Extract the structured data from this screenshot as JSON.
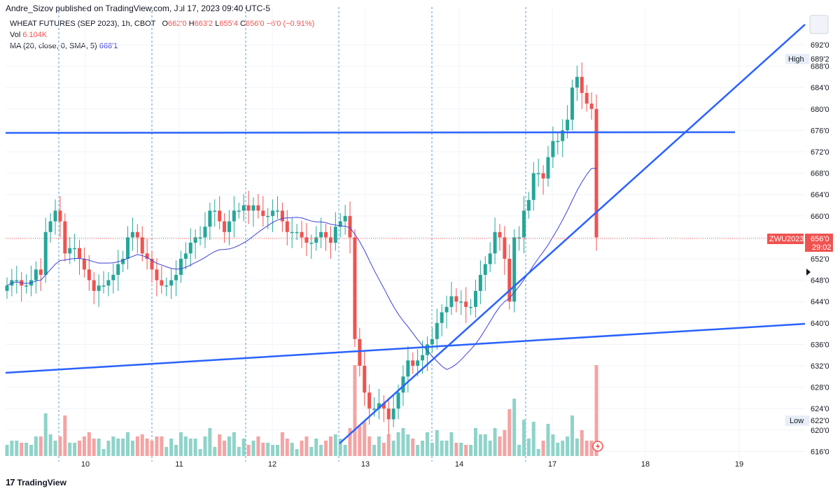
{
  "header": {
    "published_line": "Andre_Sizov published on TradingView.com, Jul 17, 2023 09:40 UTC-5"
  },
  "legend": {
    "symbol_line": "WHEAT FUTURES (SEP 2023), 1h, CBOT",
    "open_label": "O",
    "open_value": "662'0",
    "high_label": "H",
    "high_value": "663'2",
    "low_label": "L",
    "low_value": "655'4",
    "close_label": "C",
    "close_value": "656'0",
    "change_value": "−6'0 (−0.91%)",
    "vol_label": "Vol",
    "vol_value": "6.104K",
    "ma_label": "MA (20, close, 0, SMA, 5)",
    "ma_value": "668'1"
  },
  "colors": {
    "up": "#26a69a",
    "down": "#ef5350",
    "up_vol": "#8fd3c9",
    "down_vol": "#f5a3a3",
    "trendline": "#2962ff",
    "ma": "#3f3fd8",
    "session_line": "#5b9bd5"
  },
  "price_tags": {
    "high_label": "High",
    "high_value": "689'2",
    "low_label": "Low",
    "low_value": "622'0",
    "symbol_label": "ZWU2023",
    "last_value": "656'0",
    "countdown": "29:02"
  },
  "branding": {
    "text": "TradingView",
    "logo": "17"
  },
  "chart_data": {
    "type": "candlestick",
    "y_ticks": [
      "692'0",
      "688'0",
      "684'0",
      "680'0",
      "676'0",
      "672'0",
      "668'0",
      "664'0",
      "660'0",
      "656'0",
      "652'0",
      "648'0",
      "644'0",
      "640'0",
      "636'0",
      "632'0",
      "628'0",
      "624'0",
      "620'0",
      "616'0"
    ],
    "x_ticks": [
      "10",
      "11",
      "12",
      "13",
      "14",
      "17",
      "18",
      "19"
    ],
    "ylim": [
      614,
      694
    ],
    "candles_close": [
      647,
      648,
      648,
      647,
      647,
      648,
      650,
      649,
      657,
      659,
      661,
      659,
      653,
      654,
      654,
      652,
      650,
      648,
      646,
      647,
      647,
      648,
      649,
      651,
      652,
      656,
      657,
      656,
      653,
      652,
      650,
      648,
      647,
      647,
      648,
      649,
      652,
      653,
      655,
      656,
      656,
      658,
      661,
      661,
      659,
      657,
      659,
      661,
      661,
      662,
      661,
      662,
      661,
      660,
      660,
      661,
      661,
      659,
      657,
      657,
      657,
      656,
      655,
      655,
      656,
      657,
      656,
      655,
      658,
      659,
      660,
      656,
      637,
      632,
      627,
      624,
      624,
      625,
      624,
      622,
      624,
      627,
      630,
      633,
      632,
      633,
      634,
      636,
      637,
      640,
      642,
      643,
      645,
      644,
      644,
      643,
      643,
      646,
      649,
      651,
      653,
      657,
      656,
      652,
      644,
      656,
      656,
      661,
      663,
      668,
      668,
      667,
      671,
      674,
      674,
      676,
      678,
      684,
      686,
      683,
      681,
      680,
      656
    ]
  }
}
